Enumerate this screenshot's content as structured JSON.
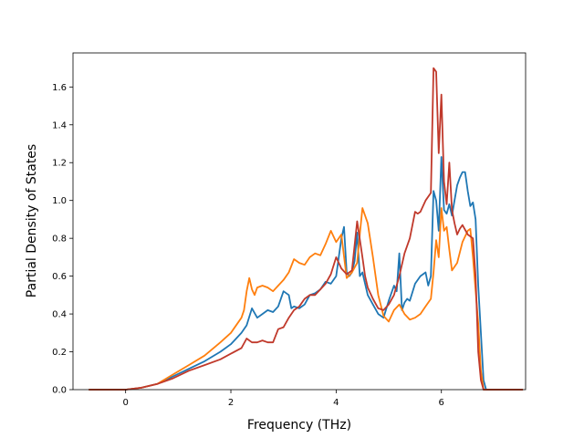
{
  "chart_data": {
    "type": "line",
    "xlabel": "Frequency (THz)",
    "ylabel": "Partial Density of States",
    "xlim": [
      -1.0,
      7.6
    ],
    "ylim": [
      0.0,
      1.78
    ],
    "xticks": [
      "0",
      "2",
      "4",
      "6"
    ],
    "xtick_values": [
      0,
      2,
      4,
      6
    ],
    "yticks": [
      "0.0",
      "0.2",
      "0.4",
      "0.6",
      "0.8",
      "1.0",
      "1.2",
      "1.4",
      "1.6"
    ],
    "ytick_values": [
      0.0,
      0.2,
      0.4,
      0.6,
      0.8,
      1.0,
      1.2,
      1.4,
      1.6
    ],
    "grid": false,
    "series": [
      {
        "color": "#1f77b4",
        "x": [
          -0.7,
          0.0,
          0.3,
          0.6,
          0.9,
          1.2,
          1.5,
          1.8,
          2.0,
          2.2,
          2.3,
          2.4,
          2.5,
          2.6,
          2.7,
          2.8,
          2.9,
          3.0,
          3.1,
          3.15,
          3.2,
          3.3,
          3.4,
          3.5,
          3.6,
          3.7,
          3.8,
          3.9,
          4.0,
          4.1,
          4.15,
          4.2,
          4.25,
          4.3,
          4.35,
          4.4,
          4.45,
          4.5,
          4.6,
          4.7,
          4.8,
          4.9,
          5.0,
          5.1,
          5.15,
          5.2,
          5.25,
          5.3,
          5.35,
          5.4,
          5.5,
          5.6,
          5.7,
          5.75,
          5.8,
          5.85,
          5.9,
          5.95,
          6.0,
          6.05,
          6.1,
          6.15,
          6.2,
          6.25,
          6.3,
          6.35,
          6.4,
          6.45,
          6.5,
          6.55,
          6.6,
          6.65,
          6.7,
          6.75,
          6.8,
          6.85,
          7.0,
          7.55
        ],
        "y": [
          0.0,
          0.0,
          0.01,
          0.03,
          0.07,
          0.11,
          0.15,
          0.2,
          0.24,
          0.3,
          0.34,
          0.43,
          0.38,
          0.4,
          0.42,
          0.41,
          0.44,
          0.52,
          0.5,
          0.43,
          0.44,
          0.43,
          0.45,
          0.5,
          0.51,
          0.53,
          0.57,
          0.56,
          0.6,
          0.8,
          0.86,
          0.62,
          0.6,
          0.62,
          0.68,
          0.83,
          0.6,
          0.62,
          0.5,
          0.45,
          0.4,
          0.38,
          0.47,
          0.55,
          0.52,
          0.72,
          0.42,
          0.46,
          0.48,
          0.47,
          0.56,
          0.6,
          0.62,
          0.55,
          0.6,
          1.05,
          1.0,
          0.84,
          1.23,
          0.95,
          0.93,
          0.98,
          0.92,
          1.0,
          1.08,
          1.12,
          1.15,
          1.15,
          1.05,
          0.97,
          0.99,
          0.9,
          0.55,
          0.3,
          0.05,
          0.0,
          0.0,
          0.0
        ]
      },
      {
        "color": "#ff7f0e",
        "x": [
          -0.7,
          0.0,
          0.3,
          0.6,
          0.9,
          1.2,
          1.5,
          1.8,
          2.0,
          2.2,
          2.25,
          2.3,
          2.35,
          2.4,
          2.45,
          2.5,
          2.6,
          2.7,
          2.8,
          2.9,
          3.0,
          3.1,
          3.2,
          3.3,
          3.4,
          3.5,
          3.6,
          3.7,
          3.8,
          3.9,
          4.0,
          4.1,
          4.2,
          4.3,
          4.4,
          4.45,
          4.5,
          4.6,
          4.7,
          4.8,
          4.9,
          5.0,
          5.1,
          5.2,
          5.3,
          5.4,
          5.5,
          5.6,
          5.7,
          5.8,
          5.85,
          5.9,
          5.95,
          6.0,
          6.05,
          6.1,
          6.15,
          6.2,
          6.3,
          6.4,
          6.5,
          6.55,
          6.6,
          6.7,
          6.75,
          6.8,
          6.85,
          7.0,
          7.55
        ],
        "y": [
          0.0,
          0.0,
          0.01,
          0.03,
          0.08,
          0.13,
          0.18,
          0.25,
          0.3,
          0.38,
          0.42,
          0.52,
          0.59,
          0.53,
          0.5,
          0.54,
          0.55,
          0.54,
          0.52,
          0.55,
          0.58,
          0.62,
          0.69,
          0.67,
          0.66,
          0.7,
          0.72,
          0.71,
          0.77,
          0.84,
          0.78,
          0.82,
          0.59,
          0.62,
          0.67,
          0.82,
          0.96,
          0.88,
          0.7,
          0.5,
          0.39,
          0.36,
          0.42,
          0.45,
          0.4,
          0.37,
          0.38,
          0.4,
          0.44,
          0.48,
          0.62,
          0.79,
          0.7,
          0.96,
          0.84,
          0.86,
          0.74,
          0.63,
          0.67,
          0.78,
          0.84,
          0.85,
          0.7,
          0.35,
          0.1,
          0.0,
          0.0,
          0.0,
          0.0
        ]
      },
      {
        "color": "#c0392b",
        "x": [
          -0.7,
          0.0,
          0.3,
          0.6,
          0.9,
          1.2,
          1.5,
          1.8,
          2.0,
          2.2,
          2.3,
          2.4,
          2.5,
          2.6,
          2.7,
          2.8,
          2.9,
          3.0,
          3.1,
          3.2,
          3.3,
          3.4,
          3.5,
          3.6,
          3.7,
          3.8,
          3.9,
          4.0,
          4.1,
          4.2,
          4.3,
          4.4,
          4.5,
          4.55,
          4.6,
          4.7,
          4.8,
          4.9,
          5.0,
          5.1,
          5.2,
          5.3,
          5.4,
          5.5,
          5.55,
          5.6,
          5.7,
          5.8,
          5.85,
          5.9,
          5.95,
          6.0,
          6.05,
          6.1,
          6.15,
          6.2,
          6.25,
          6.3,
          6.35,
          6.4,
          6.5,
          6.6,
          6.65,
          6.7,
          6.75,
          6.8,
          6.85,
          7.0,
          7.55
        ],
        "y": [
          0.0,
          0.0,
          0.01,
          0.03,
          0.06,
          0.1,
          0.13,
          0.16,
          0.19,
          0.22,
          0.27,
          0.25,
          0.25,
          0.26,
          0.25,
          0.25,
          0.32,
          0.33,
          0.38,
          0.42,
          0.44,
          0.48,
          0.5,
          0.5,
          0.53,
          0.56,
          0.61,
          0.7,
          0.64,
          0.61,
          0.63,
          0.89,
          0.7,
          0.6,
          0.54,
          0.48,
          0.43,
          0.42,
          0.45,
          0.5,
          0.6,
          0.72,
          0.8,
          0.94,
          0.93,
          0.94,
          1.0,
          1.04,
          1.7,
          1.68,
          1.25,
          1.56,
          1.1,
          0.98,
          1.2,
          0.95,
          0.88,
          0.82,
          0.85,
          0.87,
          0.82,
          0.8,
          0.6,
          0.2,
          0.05,
          0.0,
          0.0,
          0.0,
          0.0
        ]
      }
    ]
  }
}
